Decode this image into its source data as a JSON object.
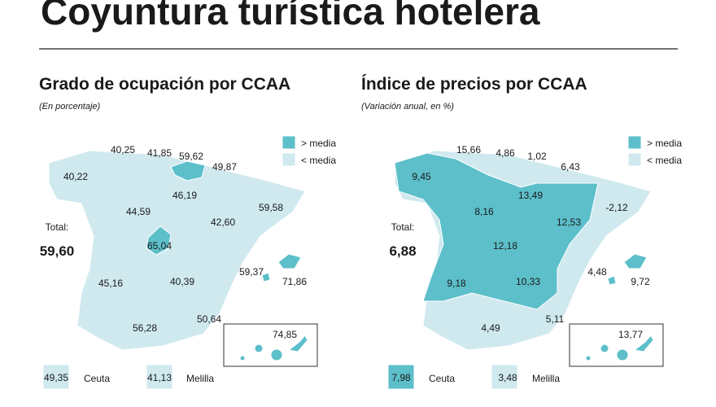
{
  "title": "Coyuntura turística hotelera",
  "maps": [
    {
      "title": "Grado de ocupación por CCAA",
      "subtitle": "(En porcentaje)",
      "legend": [
        "> media",
        "< media"
      ],
      "total_label": "Total:",
      "total": "59,60",
      "regions": [
        "40,25",
        "41,85",
        "59,62",
        "49,87",
        "40,22",
        "46,19",
        "44,59",
        "42,60",
        "59,58",
        "65,04",
        "59,37",
        "71,86",
        "45,16",
        "40,39",
        "50,64",
        "56,28",
        "74,85"
      ],
      "ceuta": {
        "value": "49,35",
        "name": "Ceuta"
      },
      "melilla": {
        "value": "41,13",
        "name": "Melilla"
      }
    },
    {
      "title": "Índice de precios por CCAA",
      "subtitle": "(Variación anual, en %)",
      "legend": [
        "> media",
        "< media"
      ],
      "total_label": "Total:",
      "total": "6,88",
      "regions": [
        "15,66",
        "4,86",
        "1,02",
        "6,43",
        "9,45",
        "13,49",
        "8,16",
        "12,53",
        "-2,12",
        "12,18",
        "4,48",
        "9,72",
        "9,18",
        "10,33",
        "5,11",
        "4,49",
        "13,77"
      ],
      "ceuta": {
        "value": "7,98",
        "name": "Ceuta"
      },
      "melilla": {
        "value": "3,48",
        "name": "Melilla"
      }
    }
  ]
}
